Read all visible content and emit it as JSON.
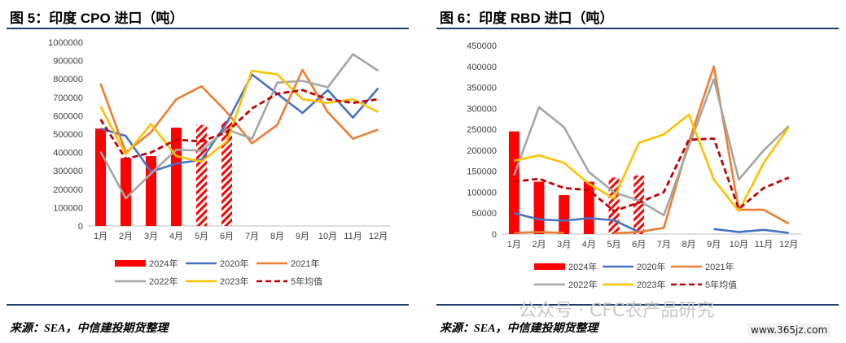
{
  "watermark": "公众号 · CFC农产品研究",
  "site": "www.365jz.com",
  "charts": [
    {
      "title": "图 5：印度 CPO 进口（吨）",
      "source": "来源：SEA，中信建投期货整理"
    },
    {
      "title": "图 6：印度 RBD 进口（吨）",
      "source": "来源：SEA，中信建投期货整理"
    }
  ],
  "chart_data": [
    {
      "type": "bar",
      "categories": [
        "1月",
        "2月",
        "3月",
        "4月",
        "5月",
        "6月",
        "7月",
        "8月",
        "9月",
        "10月",
        "11月",
        "12月"
      ],
      "ylim": [
        0,
        1000000
      ],
      "yticks": [
        "0",
        "100000",
        "200000",
        "300000",
        "400000",
        "500000",
        "600000",
        "700000",
        "800000",
        "900000",
        "1000000"
      ],
      "legend_position": "bottom",
      "bar_series": {
        "name": "2024年",
        "color": "#ff0000",
        "values": [
          530000,
          370000,
          380000,
          535000,
          550000,
          570000,
          null,
          null,
          null,
          null,
          null,
          null
        ],
        "hatched_from_index": 4
      },
      "line_series": [
        {
          "name": "2020年",
          "color": "#4472c4",
          "dash": "solid",
          "values": [
            530000,
            490000,
            295000,
            340000,
            360000,
            560000,
            825000,
            720000,
            615000,
            740000,
            590000,
            750000
          ]
        },
        {
          "name": "2021年",
          "color": "#ed7d31",
          "dash": "solid",
          "values": [
            775000,
            400000,
            510000,
            690000,
            760000,
            620000,
            450000,
            550000,
            850000,
            620000,
            475000,
            525000
          ]
        },
        {
          "name": "2022年",
          "color": "#a5a5a5",
          "dash": "solid",
          "values": [
            405000,
            150000,
            285000,
            415000,
            410000,
            525000,
            475000,
            780000,
            790000,
            755000,
            935000,
            845000
          ]
        },
        {
          "name": "2023年",
          "color": "#ffc000",
          "dash": "solid",
          "values": [
            650000,
            390000,
            555000,
            380000,
            350000,
            460000,
            845000,
            825000,
            690000,
            670000,
            690000,
            620000
          ]
        },
        {
          "name": "5年均值",
          "color": "#c00000",
          "dash": "dashed",
          "values": [
            580000,
            365000,
            400000,
            470000,
            460000,
            510000,
            640000,
            720000,
            740000,
            690000,
            670000,
            690000
          ]
        }
      ]
    },
    {
      "type": "bar",
      "categories": [
        "1月",
        "2月",
        "3月",
        "4月",
        "5月",
        "6月",
        "7月",
        "8月",
        "9月",
        "10月",
        "11月",
        "12月"
      ],
      "ylim": [
        0,
        450000
      ],
      "yticks": [
        "0",
        "50000",
        "100000",
        "150000",
        "200000",
        "250000",
        "300000",
        "350000",
        "400000",
        "450000"
      ],
      "legend_position": "bottom",
      "bar_series": {
        "name": "2024年",
        "color": "#ff0000",
        "values": [
          245000,
          125000,
          93000,
          125000,
          135000,
          140000,
          null,
          null,
          null,
          null,
          null,
          null
        ],
        "hatched_from_index": 4
      },
      "line_series": [
        {
          "name": "2020年",
          "color": "#4472c4",
          "dash": "solid",
          "values": [
            50000,
            35000,
            32000,
            38000,
            33000,
            5000,
            null,
            null,
            12000,
            5000,
            10000,
            3000
          ]
        },
        {
          "name": "2021年",
          "color": "#ed7d31",
          "dash": "solid",
          "values": [
            3000,
            5000,
            3000,
            null,
            2000,
            5000,
            15000,
            220000,
            400000,
            58000,
            58000,
            25000
          ]
        },
        {
          "name": "2022年",
          "color": "#a5a5a5",
          "dash": "solid",
          "values": [
            140000,
            303000,
            255000,
            148000,
            100000,
            80000,
            45000,
            210000,
            370000,
            130000,
            200000,
            258000
          ]
        },
        {
          "name": "2023年",
          "color": "#ffc000",
          "dash": "solid",
          "values": [
            175000,
            188000,
            170000,
            120000,
            85000,
            218000,
            238000,
            285000,
            130000,
            55000,
            170000,
            255000
          ]
        },
        {
          "name": "5年均值",
          "color": "#c00000",
          "dash": "dashed",
          "values": [
            125000,
            132000,
            110000,
            105000,
            55000,
            75000,
            100000,
            225000,
            228000,
            60000,
            110000,
            135000
          ]
        }
      ]
    }
  ]
}
